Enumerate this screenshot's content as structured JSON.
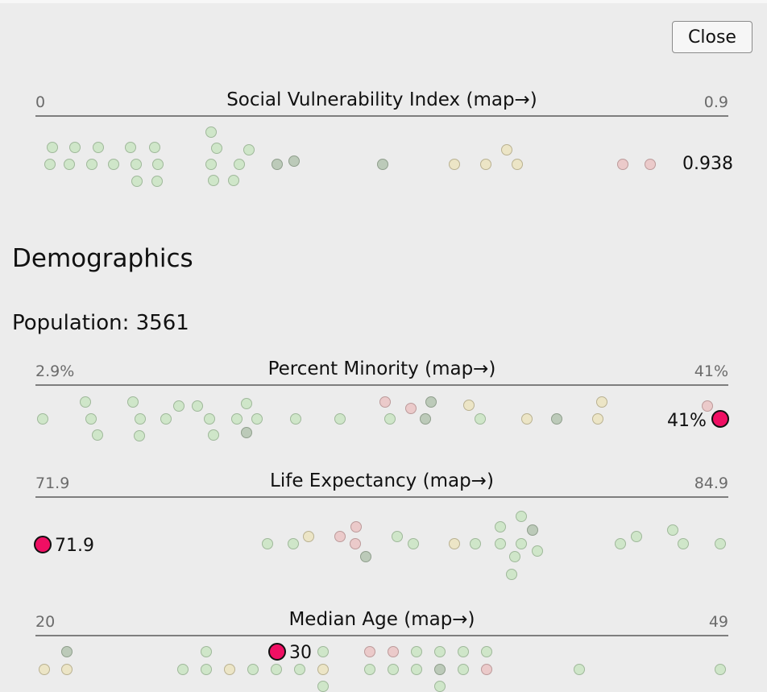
{
  "close_label": "Close",
  "colors": {
    "accent": "#ef0f63",
    "green": "#cfe6c9",
    "yellow": "#ece5c6",
    "pink": "#ebcaca",
    "gray_green": "#bccab9"
  },
  "svi": {
    "title": "Social Vulnerability Index",
    "map_link": "(map→)",
    "min_label": "0",
    "max_label": "0.9",
    "current_value": "0.938"
  },
  "demographics": {
    "heading": "Demographics",
    "population_label": "Population: 3561",
    "percent_minority": {
      "title": "Percent Minority",
      "map_link": "(map→)",
      "min_label": "2.9%",
      "max_label": "41%",
      "current_value": "41%"
    },
    "life_expectancy": {
      "title": "Life Expectancy",
      "map_link": "(map→)",
      "min_label": "71.9",
      "max_label": "84.9",
      "current_value": "71.9"
    },
    "median_age": {
      "title": "Median Age",
      "map_link": "(map→)",
      "min_label": "20",
      "max_label": "49",
      "current_value": "30"
    }
  }
}
